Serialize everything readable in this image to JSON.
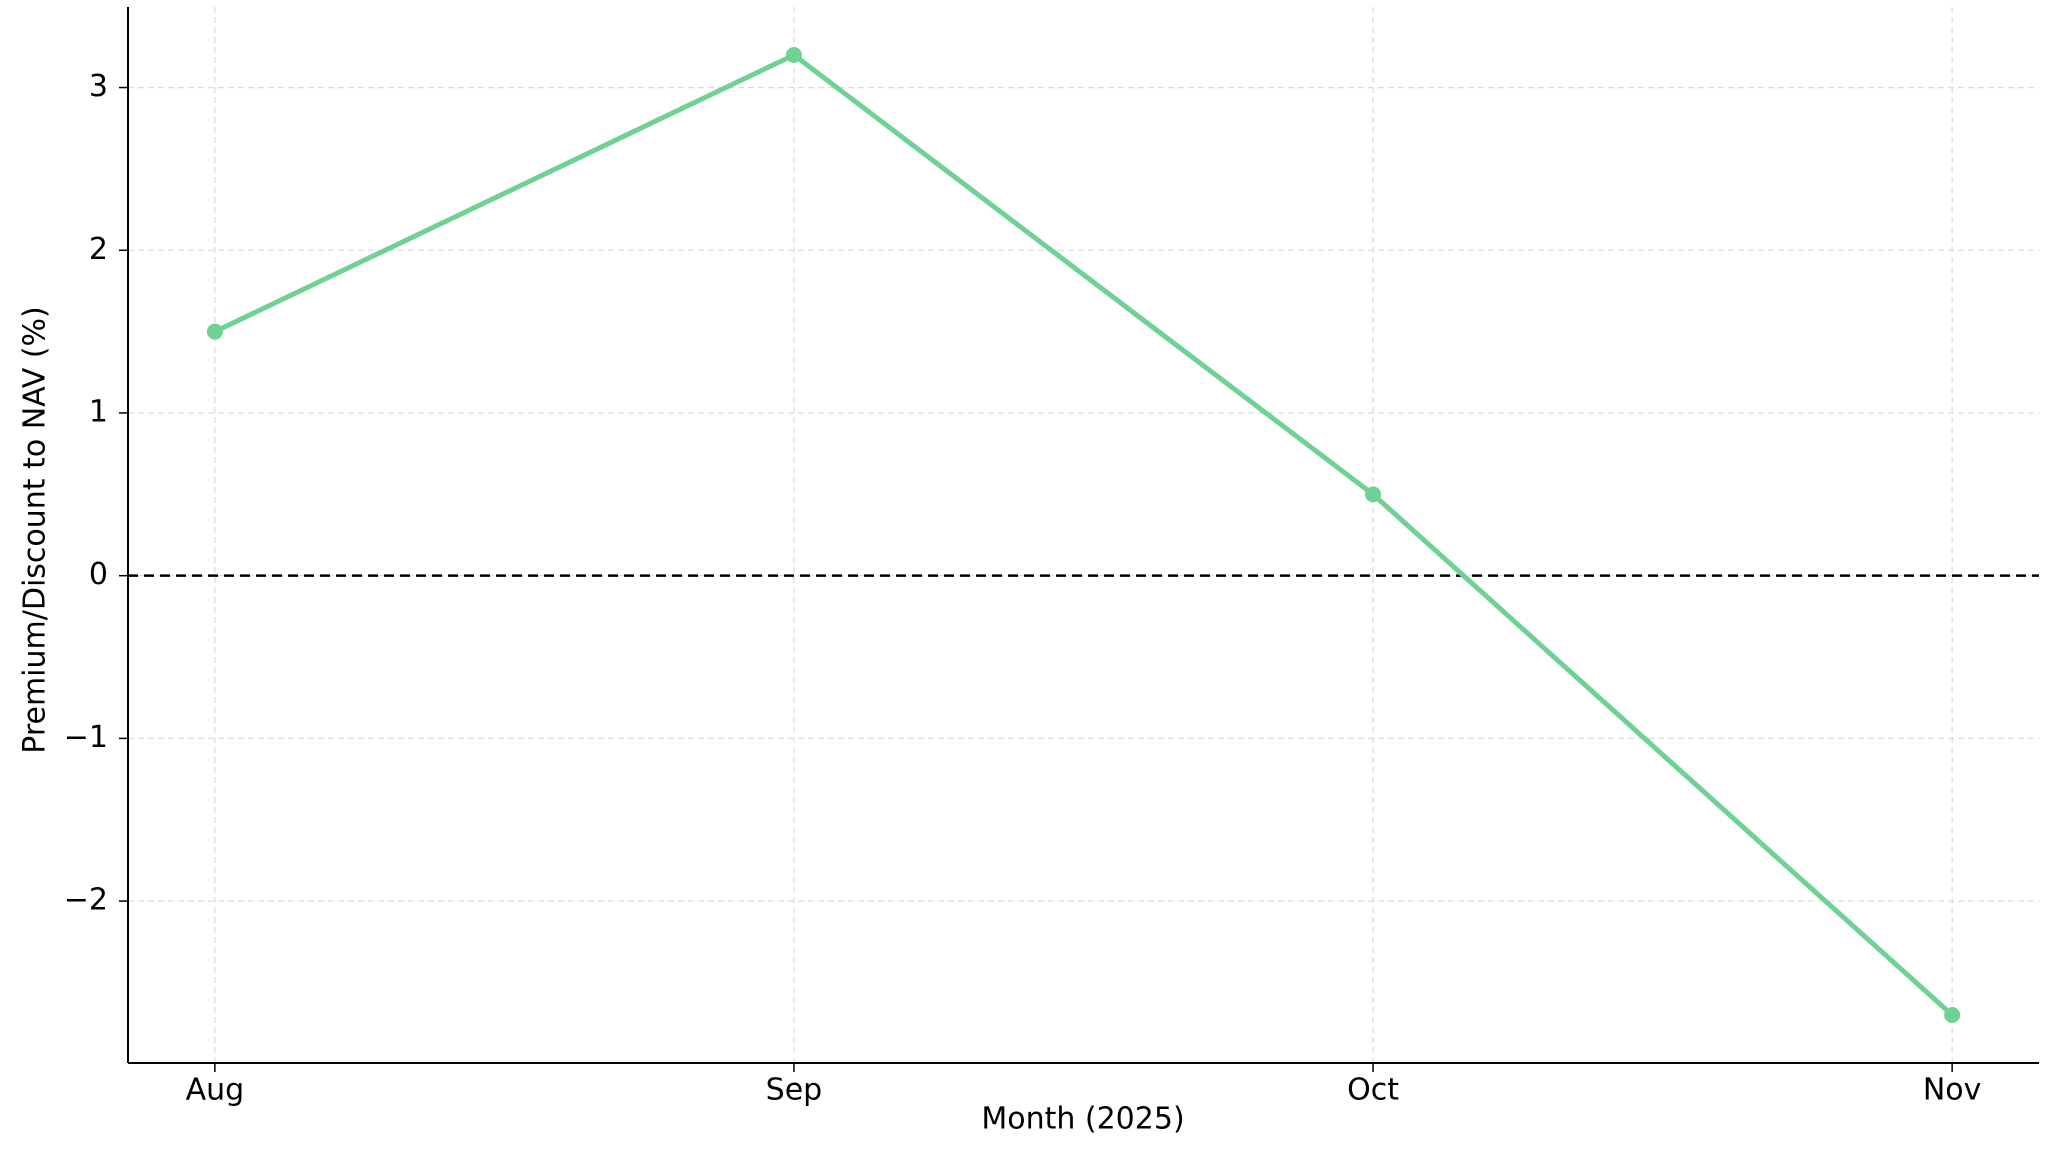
{
  "chart_data": {
    "type": "line",
    "x_label": "Month (2025)",
    "y_label": "Premium/Discount to NAV (%)",
    "categories": [
      "Aug",
      "Sep",
      "Oct",
      "Nov"
    ],
    "values": [
      1.5,
      3.2,
      0.5,
      -2.7
    ],
    "color": "#6fd293",
    "ylim": [
      -2.995,
      3.495
    ],
    "yticks": [
      {
        "value": -2,
        "label": "−2"
      },
      {
        "value": -1,
        "label": "−1"
      },
      0,
      1,
      2,
      3
    ],
    "reference_line": 0,
    "grid": true
  }
}
